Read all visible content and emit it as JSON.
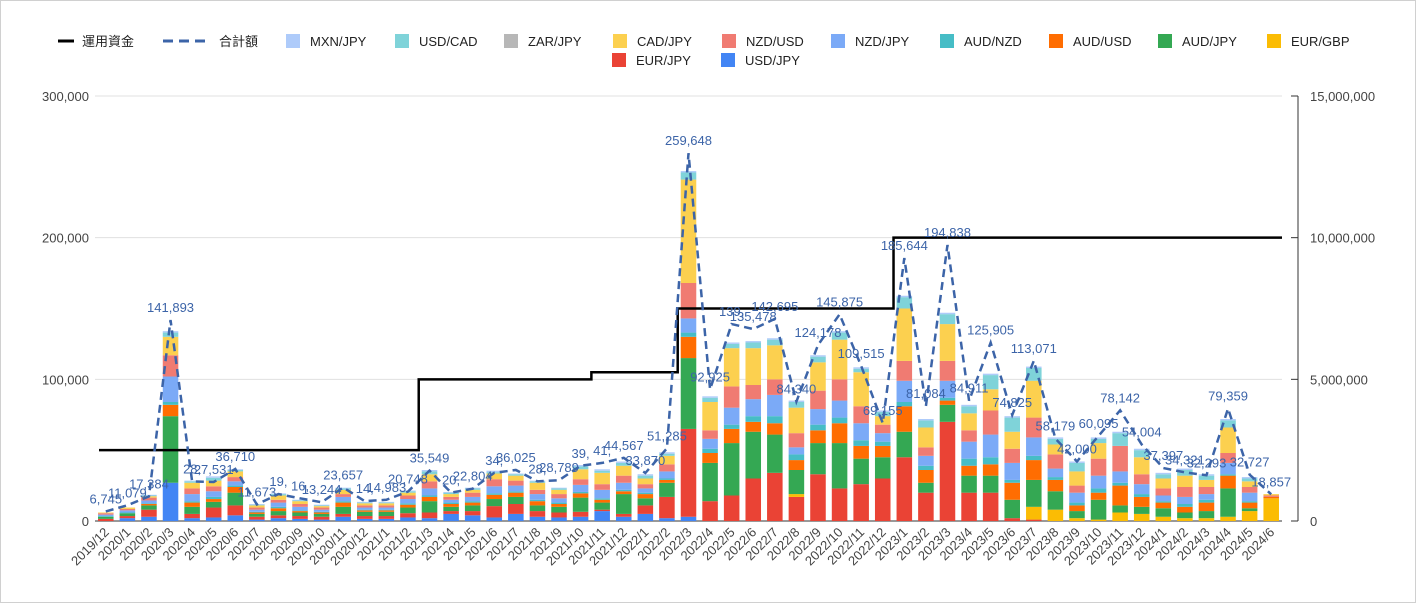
{
  "chart_data": {
    "type": "bar",
    "stacked": true,
    "title": "",
    "xlabel": "",
    "ylabel": "",
    "ylim": [
      0,
      300000
    ],
    "y_ticks": [
      "0",
      "100,000",
      "200,000",
      "300,000"
    ],
    "y2lim": [
      0,
      15000000
    ],
    "y2_ticks": [
      "0",
      "5,000,000",
      "10,000,000",
      "15,000,000"
    ],
    "grid": true,
    "legend_position": "top",
    "categories": [
      "2019/12",
      "2020/1",
      "2020/2",
      "2020/3",
      "2020/4",
      "2020/5",
      "2020/6",
      "2020/7",
      "2020/8",
      "2020/9",
      "2020/10",
      "2020/11",
      "2020/12",
      "2021/1",
      "2021/2",
      "2021/3",
      "2021/4",
      "2021/5",
      "2021/6",
      "2021/7",
      "2021/8",
      "2021/9",
      "2021/10",
      "2021/11",
      "2021/12",
      "2022/1",
      "2022/2",
      "2022/3",
      "2022/4",
      "2022/5",
      "2022/6",
      "2022/7",
      "2022/8",
      "2022/9",
      "2022/10",
      "2022/11",
      "2022/12",
      "2023/1",
      "2023/2",
      "2023/3",
      "2023/4",
      "2023/5",
      "2023/6",
      "2023/7",
      "2023/8",
      "2023/9",
      "2023/10",
      "2023/11",
      "2023/12",
      "2024/1",
      "2024/2",
      "2024/3",
      "2024/4",
      "2024/5",
      "2024/6"
    ],
    "legend_order": [
      "運用資金",
      "合計額",
      "MXN/JPY",
      "USD/CAD",
      "ZAR/JPY",
      "CAD/JPY",
      "NZD/USD",
      "NZD/JPY",
      "AUD/NZD",
      "AUD/USD",
      "AUD/JPY",
      "EUR/GBP",
      "EUR/JPY",
      "USD/JPY"
    ],
    "stack_order": [
      "USD/JPY",
      "EUR/JPY",
      "EUR/GBP",
      "AUD/JPY",
      "AUD/USD",
      "AUD/NZD",
      "NZD/JPY",
      "NZD/USD",
      "CAD/JPY",
      "ZAR/JPY",
      "USD/CAD",
      "MXN/JPY"
    ],
    "series": [
      {
        "name": "USD/JPY",
        "color": "#4285f4",
        "values": [
          0,
          2000,
          3000,
          27000,
          2000,
          2500,
          4000,
          1000,
          2000,
          1500,
          1000,
          3000,
          1500,
          1500,
          2500,
          2000,
          5000,
          4000,
          2500,
          5000,
          3000,
          2500,
          3000,
          7000,
          3000,
          5000,
          2000,
          3000,
          0,
          0,
          0,
          0,
          0,
          0,
          0,
          0,
          0,
          0,
          0,
          0,
          0,
          0,
          0,
          0,
          0,
          0,
          0,
          0,
          0,
          0,
          0,
          0,
          0,
          0,
          0
        ]
      },
      {
        "name": "EUR/JPY",
        "color": "#ea4335",
        "values": [
          1500,
          1500,
          5000,
          0,
          3000,
          7000,
          7000,
          2000,
          2000,
          2000,
          2000,
          2000,
          2000,
          2000,
          3000,
          4000,
          2000,
          3000,
          8000,
          7000,
          4000,
          3500,
          3500,
          1000,
          2000,
          6000,
          15000,
          62000,
          14000,
          18000,
          30000,
          34000,
          17000,
          33000,
          23000,
          26000,
          30000,
          45000,
          20000,
          70000,
          20000,
          20000,
          2000,
          1000,
          0,
          0,
          0,
          0,
          0,
          0,
          0,
          0,
          0,
          0,
          0
        ]
      },
      {
        "name": "EUR/GBP",
        "color": "#fbbc04",
        "values": [
          0,
          0,
          0,
          0,
          0,
          0,
          0,
          0,
          0,
          0,
          0,
          0,
          0,
          0,
          0,
          0,
          0,
          0,
          0,
          0,
          0,
          0,
          0,
          0,
          0,
          0,
          0,
          0,
          0,
          0,
          0,
          0,
          2000,
          0,
          0,
          0,
          0,
          0,
          0,
          0,
          0,
          0,
          0,
          9000,
          8000,
          2000,
          1000,
          6000,
          5000,
          3000,
          2000,
          2000,
          3000,
          7000,
          16000
        ]
      },
      {
        "name": "AUD/JPY",
        "color": "#34a853",
        "values": [
          1500,
          2000,
          3000,
          47000,
          5000,
          4000,
          9000,
          2000,
          3000,
          2500,
          2000,
          5000,
          3000,
          3000,
          4000,
          8000,
          3000,
          4000,
          5000,
          5000,
          4000,
          4000,
          10000,
          5000,
          14000,
          5000,
          10000,
          50000,
          27000,
          37000,
          33000,
          27000,
          17000,
          22000,
          32000,
          18000,
          15000,
          18000,
          7000,
          12000,
          12000,
          12000,
          13000,
          19000,
          13000,
          5000,
          14000,
          5000,
          5000,
          6000,
          4000,
          5000,
          20000,
          2000,
          0
        ]
      },
      {
        "name": "AUD/USD",
        "color": "#ff6d01",
        "values": [
          0,
          0,
          1000,
          8000,
          3000,
          2000,
          4000,
          1000,
          2000,
          1000,
          1000,
          3000,
          1000,
          1000,
          2000,
          3000,
          2000,
          2000,
          3000,
          3000,
          3000,
          2000,
          3000,
          2000,
          2000,
          3000,
          2000,
          15000,
          7000,
          10000,
          7000,
          8000,
          7000,
          9000,
          14000,
          9000,
          8000,
          18000,
          9000,
          3000,
          7000,
          8000,
          12000,
          14000,
          8000,
          4000,
          5000,
          14000,
          7000,
          4000,
          4000,
          6000,
          9000,
          4000,
          1000
        ]
      },
      {
        "name": "AUD/NZD",
        "color": "#46bdc6",
        "values": [
          500,
          500,
          500,
          2000,
          1000,
          1500,
          1000,
          500,
          1000,
          500,
          500,
          1000,
          500,
          500,
          1000,
          1000,
          1000,
          1000,
          1000,
          1000,
          1000,
          1000,
          1000,
          1000,
          1000,
          1000,
          1000,
          3000,
          3000,
          3000,
          4000,
          5000,
          4000,
          4000,
          4000,
          4000,
          3000,
          3000,
          3000,
          2000,
          5000,
          5000,
          2000,
          3000,
          2000,
          2000,
          3000,
          2000,
          2000,
          1000,
          2000,
          2000,
          1000,
          1000,
          0
        ]
      },
      {
        "name": "NZD/JPY",
        "color": "#7baaf7",
        "values": [
          1000,
          1500,
          2000,
          18000,
          5000,
          4000,
          3000,
          1500,
          3000,
          2500,
          1500,
          3000,
          1500,
          1500,
          3000,
          5000,
          2000,
          3000,
          5000,
          4000,
          4000,
          3000,
          5000,
          6000,
          5000,
          3000,
          5000,
          10000,
          7000,
          12000,
          12000,
          15000,
          5000,
          11000,
          12000,
          12000,
          6000,
          15000,
          7000,
          12000,
          12000,
          16000,
          12000,
          13000,
          6000,
          7000,
          9000,
          8000,
          7000,
          4000,
          5000,
          4000,
          8000,
          6000,
          0
        ]
      },
      {
        "name": "NZD/USD",
        "color": "#f07b72",
        "values": [
          1000,
          1000,
          2000,
          15000,
          4000,
          3500,
          3000,
          1500,
          2000,
          2000,
          1500,
          2000,
          1500,
          1500,
          2500,
          5000,
          2000,
          3000,
          5000,
          3500,
          3000,
          3000,
          4000,
          4000,
          5000,
          3000,
          5000,
          25000,
          6000,
          15000,
          10000,
          11000,
          10000,
          13000,
          15000,
          12000,
          6000,
          14000,
          6000,
          14000,
          8000,
          17000,
          10000,
          14000,
          10000,
          5000,
          12000,
          18000,
          7000,
          5000,
          7000,
          5000,
          7000,
          4000,
          1000
        ]
      },
      {
        "name": "CAD/JPY",
        "color": "#fcd04f",
        "values": [
          500,
          1000,
          1000,
          13000,
          4000,
          4000,
          4000,
          1500,
          3000,
          2000,
          1000,
          3000,
          1500,
          1500,
          2000,
          5000,
          2000,
          2000,
          4000,
          3500,
          5000,
          3000,
          7000,
          8000,
          7000,
          4000,
          6000,
          73000,
          20000,
          27000,
          26000,
          24000,
          18000,
          20000,
          28000,
          24000,
          6000,
          37000,
          14000,
          26000,
          12000,
          15000,
          12000,
          26000,
          7000,
          10000,
          11000,
          0,
          12000,
          7000,
          8000,
          5000,
          18000,
          4000,
          1000
        ]
      },
      {
        "name": "ZAR/JPY",
        "color": "#b7b7b7",
        "values": [
          0,
          0,
          0,
          0,
          0,
          0,
          0,
          0,
          0,
          0,
          0,
          0,
          0,
          0,
          0,
          0,
          0,
          0,
          0,
          0,
          0,
          0,
          0,
          0,
          0,
          0,
          0,
          0,
          0,
          0,
          0,
          0,
          0,
          0,
          0,
          0,
          0,
          0,
          0,
          0,
          0,
          0,
          0,
          0,
          0,
          0,
          0,
          0,
          0,
          0,
          0,
          0,
          0,
          0,
          0
        ]
      },
      {
        "name": "USD/CAD",
        "color": "#7fd3d9",
        "values": [
          0,
          0,
          500,
          3000,
          1000,
          2000,
          1000,
          500,
          1000,
          500,
          500,
          1000,
          500,
          500,
          1000,
          2000,
          1000,
          1000,
          1000,
          1000,
          1000,
          1000,
          2000,
          1500,
          2000,
          2000,
          1500,
          5000,
          3000,
          3000,
          4000,
          4000,
          4000,
          4000,
          5000,
          2500,
          3000,
          8000,
          5000,
          7000,
          5000,
          10000,
          10000,
          9000,
          4000,
          6000,
          3000,
          9000,
          5000,
          3000,
          4000,
          3000,
          5000,
          2000,
          0
        ]
      },
      {
        "name": "MXN/JPY",
        "color": "#aecbfa",
        "values": [
          0,
          0,
          500,
          1000,
          500,
          1000,
          500,
          500,
          500,
          500,
          500,
          500,
          500,
          500,
          500,
          1000,
          500,
          500,
          1000,
          500,
          500,
          500,
          1000,
          1000,
          1000,
          1000,
          1000,
          1000,
          1000,
          1000,
          1000,
          1000,
          1000,
          1000,
          1000,
          1000,
          1000,
          1000,
          1000,
          1000,
          1000,
          1000,
          1000,
          1000,
          1000,
          1000,
          1000,
          1000,
          1000,
          1000,
          1000,
          1000,
          1000,
          1000,
          0
        ]
      }
    ],
    "total_series": {
      "name": "合計額",
      "color": "#3c64a8",
      "values": [
        6745,
        11079,
        17384,
        141893,
        28000,
        27531,
        36710,
        11673,
        19000,
        16000,
        13244,
        23657,
        14000,
        14983,
        20748,
        35549,
        20000,
        22804,
        34000,
        36025,
        28000,
        28789,
        39000,
        41000,
        44567,
        33870,
        51285,
        259648,
        92925,
        139000,
        135478,
        142695,
        84340,
        124178,
        145875,
        109515,
        69155,
        185644,
        81084,
        194838,
        84911,
        125905,
        74825,
        113071,
        58179,
        42000,
        60095,
        78142,
        54004,
        37397,
        34321,
        32293,
        79359,
        32727,
        18857
      ],
      "labels": [
        "6,745",
        "11,079",
        "17,384",
        "141,893",
        "28,",
        "27,531",
        "36,710",
        "11,673",
        "19,",
        "16,",
        "13,244",
        "23,657",
        "14,",
        "14,983",
        "20,748",
        "35,549",
        "20,",
        "22,804",
        "34,",
        "36,025",
        "28,",
        "28,789",
        "39,",
        "41,",
        "44,567",
        "33,870",
        "51,285",
        "259,648",
        "92,925",
        "139,",
        "135,478",
        "142,695",
        "84,340",
        "124,178",
        "145,875",
        "109,515",
        "69,155",
        "185,644",
        "81,084",
        "194,838",
        "84,911",
        "125,905",
        "74,825",
        "113,071",
        "58,179",
        "42,000",
        "60,095",
        "78,142",
        "54,004",
        "37,397",
        "34,321",
        "32,293",
        "79,359",
        "32,727",
        "18,857"
      ]
    },
    "line_series": {
      "name": "運用資金",
      "color": "#000000",
      "axis": "right",
      "values": [
        2500000,
        2500000,
        2500000,
        2500000,
        2500000,
        2500000,
        2500000,
        2500000,
        2500000,
        2500000,
        2500000,
        2500000,
        2500000,
        2500000,
        2500000,
        5000000,
        5000000,
        5000000,
        5000000,
        5000000,
        5000000,
        5000000,
        5000000,
        5250000,
        5250000,
        5250000,
        5250000,
        7500000,
        7500000,
        7500000,
        7500000,
        7500000,
        7500000,
        7500000,
        7500000,
        7500000,
        7500000,
        10000000,
        10000000,
        10000000,
        10000000,
        10000000,
        10000000,
        10000000,
        10000000,
        10000000,
        10000000,
        10000000,
        10000000,
        10000000,
        10000000,
        10000000,
        10000000,
        10000000,
        10000000
      ]
    }
  }
}
